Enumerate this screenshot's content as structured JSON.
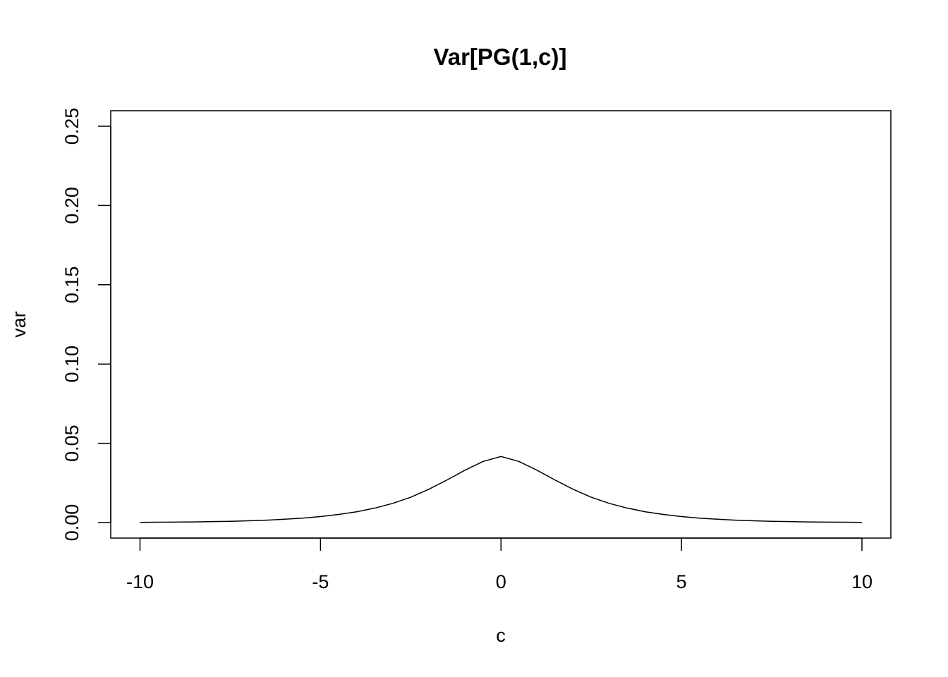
{
  "chart_data": {
    "type": "line",
    "title": "Var[PG(1,c)]",
    "xlabel": "c",
    "ylabel": "var",
    "xlim": [
      -10,
      10
    ],
    "ylim": [
      0,
      0.25
    ],
    "xticks": [
      -10,
      -5,
      0,
      5,
      10
    ],
    "xtick_labels": [
      "-10",
      "-5",
      "0",
      "5",
      "10"
    ],
    "yticks": [
      0,
      0.05,
      0.1,
      0.15,
      0.2,
      0.25
    ],
    "ytick_labels": [
      "0.00",
      "0.05",
      "0.10",
      "0.15",
      "0.20",
      "0.25"
    ],
    "grid": false,
    "legend": "none",
    "line_color": "#000000",
    "series": [
      {
        "x": [
          -10,
          -9.5,
          -9,
          -8.5,
          -8,
          -7.5,
          -7,
          -6.5,
          -6,
          -5.5,
          -5,
          -4.5,
          -4,
          -3.5,
          -3,
          -2.5,
          -2,
          -1.5,
          -1,
          -0.5,
          0,
          0.5,
          1,
          1.5,
          2,
          2.5,
          3,
          3.5,
          4,
          4.5,
          5,
          5.5,
          6,
          6.5,
          7,
          7.5,
          8,
          8.5,
          9,
          9.5,
          10
        ],
        "values": [
          0.0001,
          0.0002,
          0.0003,
          0.0004,
          0.0006,
          0.0008,
          0.0011,
          0.0015,
          0.0021,
          0.0028,
          0.0038,
          0.0051,
          0.0068,
          0.0091,
          0.0121,
          0.016,
          0.021,
          0.0268,
          0.033,
          0.0385,
          0.0417,
          0.0385,
          0.033,
          0.0268,
          0.021,
          0.016,
          0.0121,
          0.0091,
          0.0068,
          0.0051,
          0.0038,
          0.0028,
          0.0021,
          0.0015,
          0.0011,
          0.0008,
          0.0006,
          0.0004,
          0.0003,
          0.0002,
          0.0001
        ]
      }
    ]
  }
}
